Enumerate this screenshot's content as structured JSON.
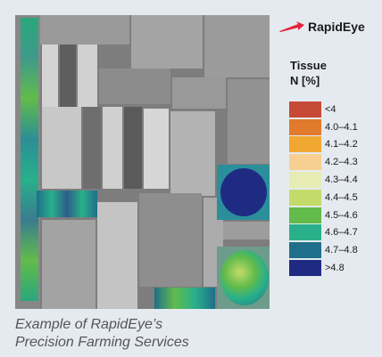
{
  "brand": {
    "name": "RapidEye",
    "icon": "swoosh-icon",
    "icon_color": "#e2233a"
  },
  "legend": {
    "title_line1": "Tissue",
    "title_line2": "N [%]",
    "items": [
      {
        "label": "<4",
        "color": "#c64a36"
      },
      {
        "label": "4.0–4.1",
        "color": "#e07a2c"
      },
      {
        "label": "4.1–4.2",
        "color": "#f0a832"
      },
      {
        "label": "4.2–4.3",
        "color": "#f7d091"
      },
      {
        "label": "4.3–4.4",
        "color": "#e6ecb4"
      },
      {
        "label": "4.4–4.5",
        "color": "#c3db6b"
      },
      {
        "label": "4.5–4.6",
        "color": "#62bb4b"
      },
      {
        "label": "4.6–4.7",
        "color": "#29b08b"
      },
      {
        "label": "4.7–4.8",
        "color": "#1f6f8a"
      },
      {
        "label": ">4.8",
        "color": "#1f2b83"
      }
    ]
  },
  "caption": {
    "line1": "Example of RapidEye’s",
    "line2": "Precision Farming Services"
  }
}
